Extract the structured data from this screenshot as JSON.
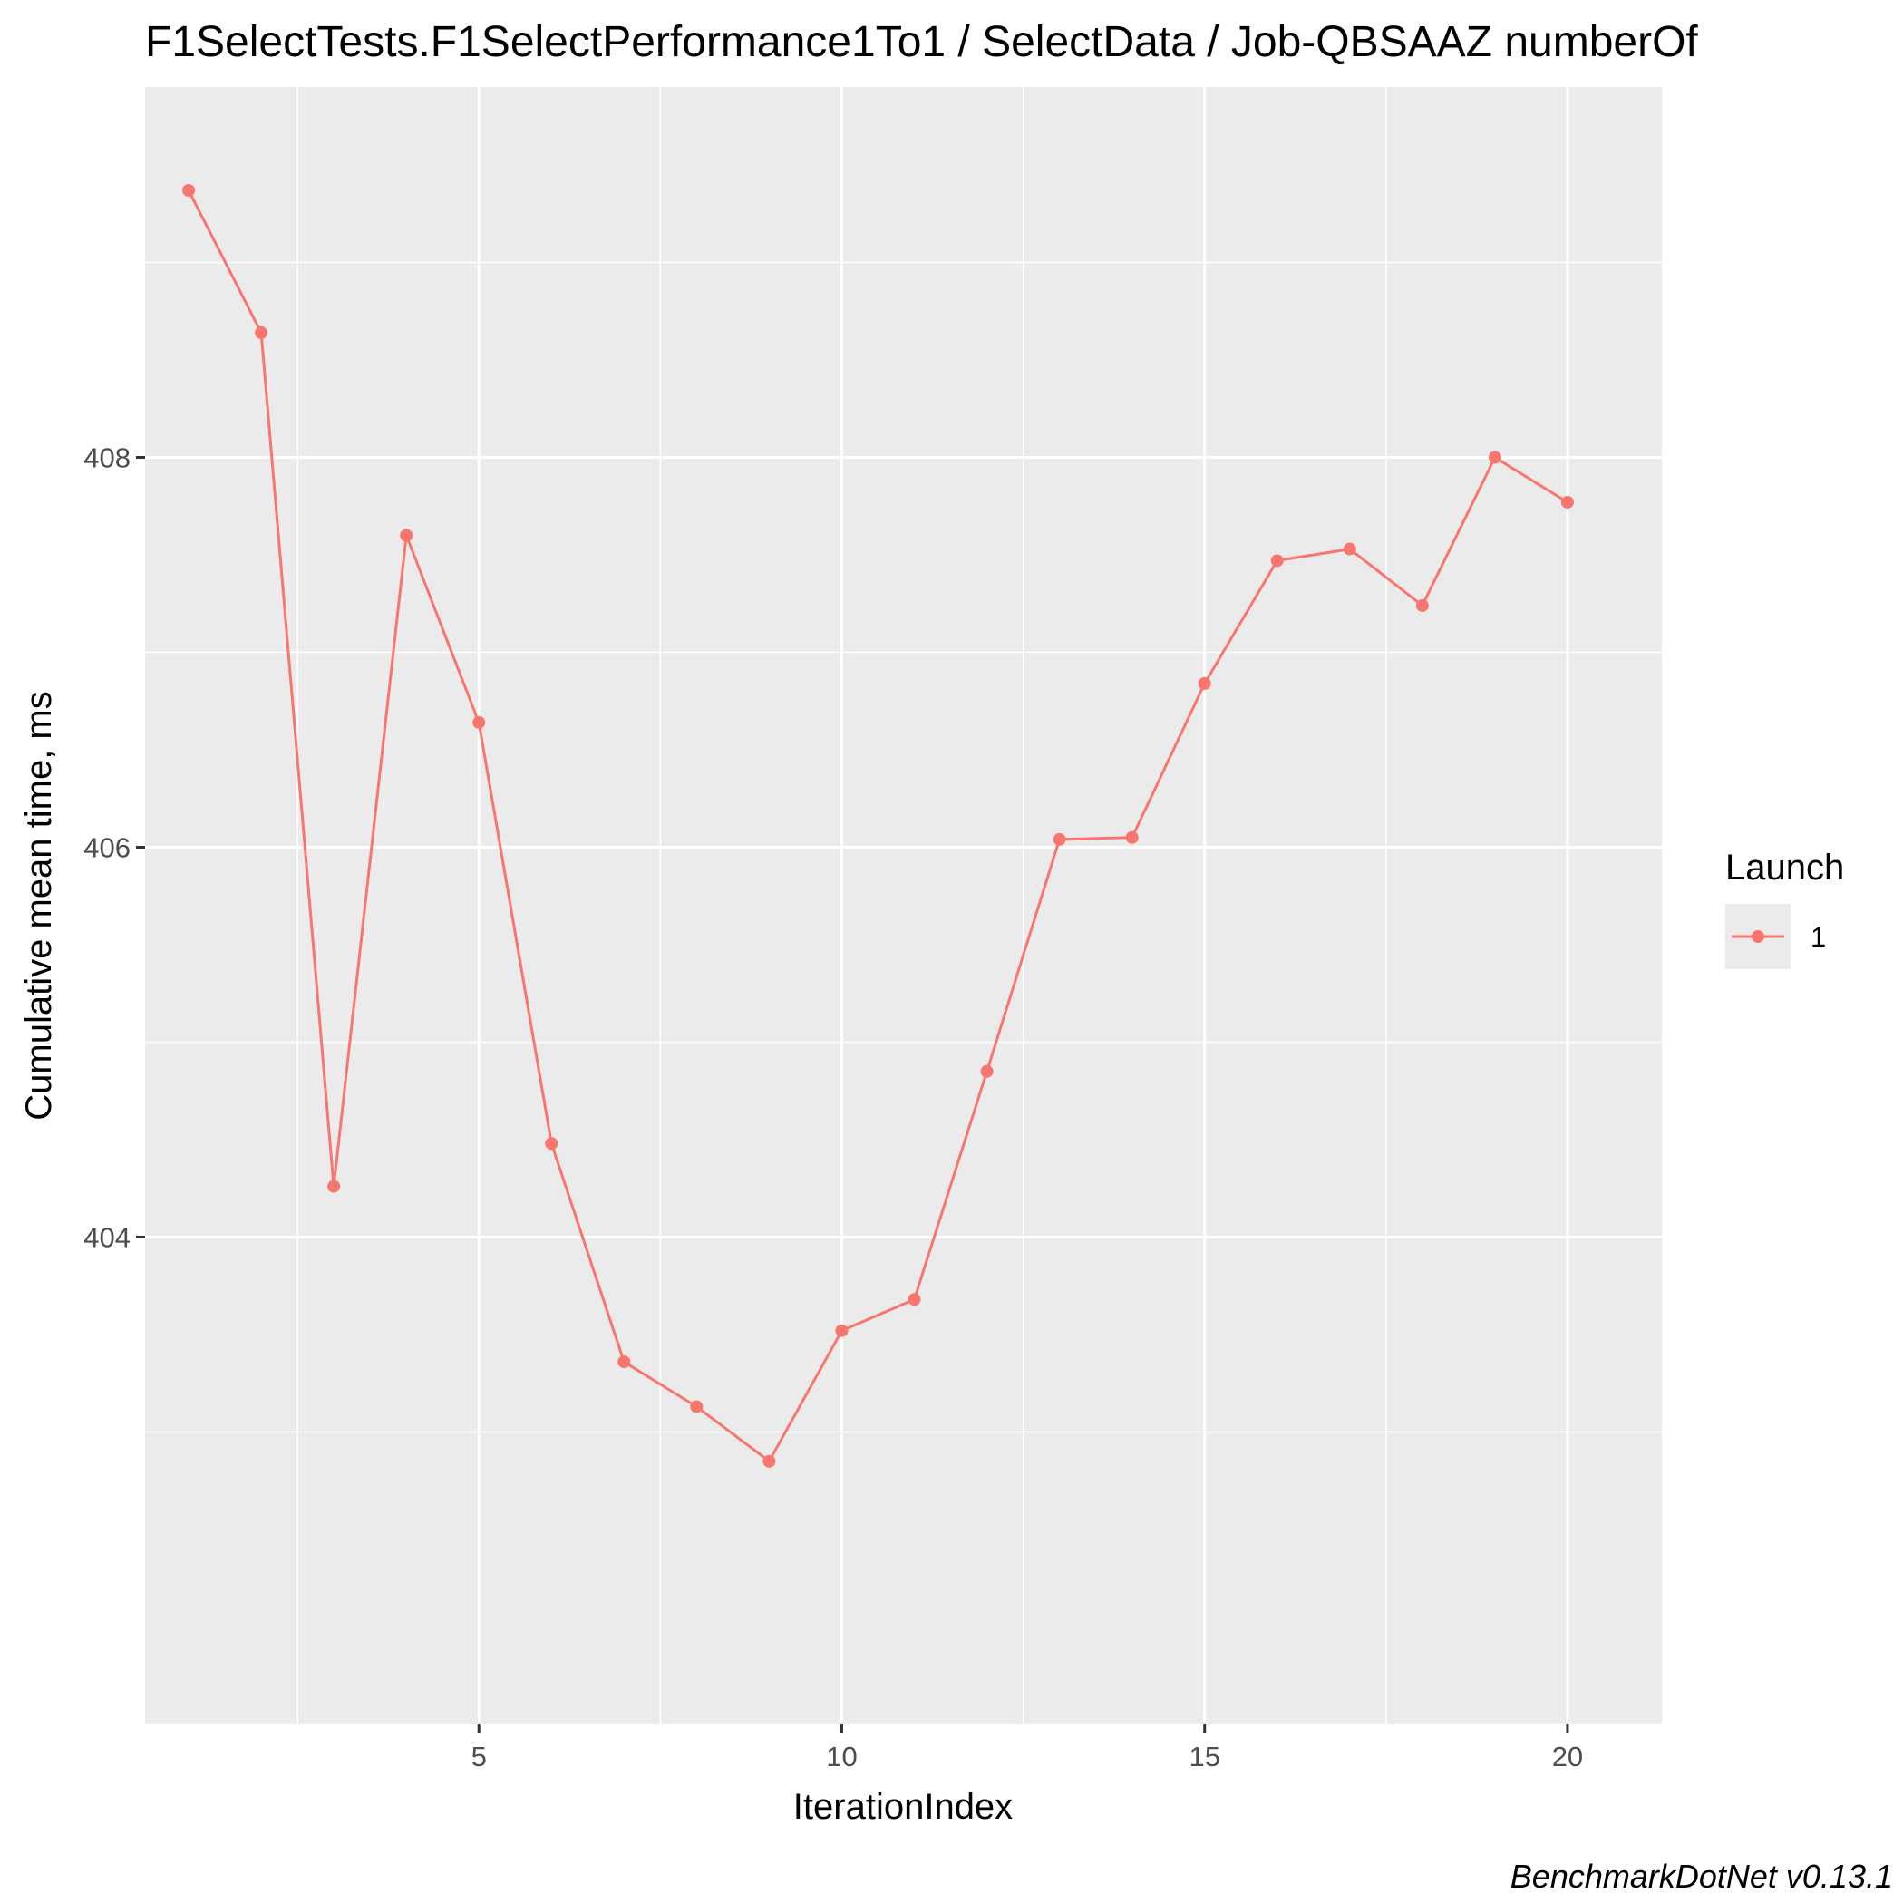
{
  "chart_data": {
    "type": "line",
    "title": "F1SelectTests.F1SelectPerformance1To1 / SelectData / Job-QBSAAZ numberOf",
    "xlabel": "IterationIndex",
    "ylabel": "Cumulative mean time, ms",
    "caption": "BenchmarkDotNet v0.13.1",
    "xlim": [
      0.4,
      21.3
    ],
    "ylim": [
      401.5,
      409.9
    ],
    "x_ticks": [
      5,
      10,
      15,
      20
    ],
    "x_tick_labels": [
      "5",
      "10",
      "15",
      "20"
    ],
    "x_minor_ticks": [
      2.5,
      7.5,
      12.5,
      17.5
    ],
    "y_ticks": [
      404,
      406,
      408
    ],
    "y_tick_labels": [
      "404",
      "406",
      "408"
    ],
    "y_minor_ticks": [
      403,
      405,
      407,
      409
    ],
    "grid": true,
    "legend": {
      "title": "Launch",
      "position": "right"
    },
    "colors": {
      "series": "#F8766D",
      "panel": "#EBEBEB",
      "grid": "#FFFFFF"
    },
    "series": [
      {
        "name": "1",
        "x": [
          1,
          2,
          3,
          4,
          5,
          6,
          7,
          8,
          9,
          10,
          11,
          12,
          13,
          14,
          15,
          16,
          17,
          18,
          19,
          20
        ],
        "values": [
          409.37,
          408.64,
          404.26,
          407.6,
          406.64,
          404.48,
          403.36,
          403.13,
          402.85,
          403.52,
          403.68,
          404.85,
          406.04,
          406.05,
          406.84,
          407.47,
          407.53,
          407.24,
          408.0,
          407.77
        ]
      }
    ]
  }
}
